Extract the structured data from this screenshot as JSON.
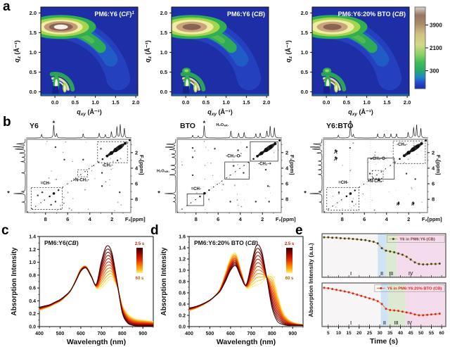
{
  "panels": {
    "a": "a",
    "b": "b",
    "c": "c",
    "d": "d",
    "e": "e"
  },
  "chart_data": [
    {
      "id": "a",
      "type": "heatmap",
      "technique": "2D GIWAXS patterns, intensity map of qz vs qxy",
      "plots": [
        {
          "title": [
            [
              "PM6:Y6 (",
              0
            ],
            [
              "CF",
              1
            ],
            [
              ")",
              0
            ],
            [
              "1",
              2
            ]
          ],
          "core": "white",
          "spot": false
        },
        {
          "title": [
            [
              "PM6:Y6 (",
              0
            ],
            [
              "CB",
              1
            ],
            [
              ")",
              0
            ]
          ],
          "core": "brown",
          "spot": true
        },
        {
          "title": [
            [
              "PM6:Y6:20% BTO (",
              0
            ],
            [
              "CB",
              1
            ],
            [
              ")",
              0
            ]
          ],
          "core": "brown",
          "spot": true
        }
      ],
      "xlabel": {
        "v": "q",
        "sub": "xy",
        "unit": " (Å⁻¹)"
      },
      "ylabel": {
        "v": "q",
        "sub": "z",
        "unit": " (Å⁻¹)"
      },
      "x_ticks": [
        "0.0",
        "0.5",
        "1.0",
        "1.5",
        "2.0"
      ],
      "y_ticks": [
        "2.0",
        "1.5",
        "1.0",
        "0.5",
        "0.0"
      ],
      "x_tick_vals": [
        0,
        0.5,
        1,
        1.5,
        2
      ],
      "y_tick_vals": [
        2,
        1.5,
        1,
        0.5,
        0
      ],
      "features": {
        "pipi_ring_q": 1.63,
        "lamellar_q": 0.3
      },
      "palette": {
        "background": "#1d2ea6",
        "ring": "#2fae52",
        "khaki": "#a6d44e",
        "pale": "#eeeea2",
        "tan": "#c49a74",
        "brown": "#8a6452",
        "white": "#f7f3ea"
      },
      "colorbar": {
        "ticks": [
          "3900",
          "2100",
          "300"
        ],
        "positions": [
          0.22,
          0.5,
          0.78
        ],
        "stops": [
          [
            0,
            "#d9d4d1"
          ],
          [
            0.1,
            "#97755f"
          ],
          [
            0.2,
            "#a98a68"
          ],
          [
            0.33,
            "#cfc182"
          ],
          [
            0.46,
            "#d3d886"
          ],
          [
            0.58,
            "#8ed06a"
          ],
          [
            0.68,
            "#3fbc56"
          ],
          [
            0.78,
            "#2aa86c"
          ],
          [
            0.86,
            "#1f86c8"
          ],
          [
            0.93,
            "#2547cc"
          ],
          [
            1,
            "#1c2fa6"
          ]
        ]
      }
    },
    {
      "id": "b",
      "type": "scatter",
      "technique": "2D NOESY NMR contour maps",
      "xlabel": "F₂[ppm]",
      "ylabel": "F₁[ppm]",
      "tick_vals": [
        8,
        6,
        4,
        2
      ],
      "tick_labels": [
        "8",
        "6",
        "4",
        "2"
      ],
      "panels": [
        {
          "title": "Y6",
          "box_style": "dashed",
          "seed": 7,
          "boxes": [
            [
              0.6,
              0.6,
              3.3,
              3.3
            ],
            [
              6.5,
              6.5,
              9.3,
              9.3
            ],
            [
              4.2,
              4.2,
              5.1,
              5.1
            ]
          ],
          "solid_boxes": [],
          "labels": [
            {
              "t": "-CH₂-",
              "x": 2.4,
              "y": 3.8
            },
            {
              "t": ">N-CH₂-",
              "x": 4.8,
              "y": 5.7
            },
            {
              "t": "=CH-",
              "x": 8.0,
              "y": 6.1
            }
          ],
          "cross": [
            [
              7.1,
              8.3
            ],
            [
              8.3,
              7.1
            ],
            [
              7.5,
              8.7
            ],
            [
              8.7,
              7.5
            ],
            [
              4.6,
              2.9
            ],
            [
              2.9,
              4.6
            ],
            [
              3.0,
              1.5
            ],
            [
              1.5,
              3.0
            ],
            [
              7.1,
              1.3
            ],
            [
              2.9,
              6.3
            ],
            [
              6.3,
              2.9
            ],
            [
              1.3,
              7.1
            ]
          ],
          "peaks": [
            [
              8.35,
              0.25
            ],
            [
              7.26,
              0.95
            ],
            [
              7.0,
              0.3
            ],
            [
              4.6,
              0.3
            ],
            [
              3.15,
              0.35
            ],
            [
              2.6,
              0.25
            ],
            [
              2.05,
              0.45
            ],
            [
              1.55,
              0.8
            ],
            [
              1.25,
              0.95
            ],
            [
              0.88,
              0.7
            ]
          ],
          "star_top": 7.26,
          "star_left": 7.2,
          "h2o": null,
          "cols": [],
          "arrows": []
        },
        {
          "title": "BTO",
          "box_style": "solid",
          "seed": 11,
          "boxes": [
            [
              0.6,
              0.6,
              3.1,
              3.1
            ],
            [
              3.2,
              3.2,
              5.4,
              5.4
            ],
            [
              7.3,
              7.3,
              8.8,
              8.8
            ]
          ],
          "solid_boxes": [],
          "labels": [
            {
              "t": "-CH₂-O-",
              "x": 4.6,
              "y": 2.6
            },
            {
              "t": "-CH₂-",
              "x": 1.9,
              "y": 3.6
            },
            {
              "t": "=CH-",
              "x": 8.0,
              "y": 6.8
            }
          ],
          "cross": [
            [
              3.7,
              4.6
            ],
            [
              4.6,
              3.7
            ],
            [
              4.2,
              1.7
            ],
            [
              1.7,
              4.2
            ],
            [
              3.4,
              1.3
            ],
            [
              1.3,
              3.4
            ],
            [
              8.3,
              4.9
            ],
            [
              8.3,
              2.6
            ],
            [
              8.3,
              1.4
            ],
            [
              4.9,
              8.3
            ],
            [
              2.6,
              8.3
            ],
            [
              1.4,
              8.3
            ],
            [
              6.3,
              1.5
            ],
            [
              1.5,
              6.3
            ]
          ],
          "peaks": [
            [
              8.3,
              0.2
            ],
            [
              7.8,
              0.15
            ],
            [
              7.26,
              0.9
            ],
            [
              4.85,
              0.5
            ],
            [
              4.15,
              0.35
            ],
            [
              3.65,
              0.4
            ],
            [
              2.6,
              0.3
            ],
            [
              2.2,
              0.35
            ],
            [
              1.6,
              0.5
            ],
            [
              1.3,
              0.85
            ],
            [
              0.92,
              0.75
            ]
          ],
          "star_top": 7.26,
          "star_left": 7.2,
          "h2o": {
            "x": 4.85,
            "y": 4.85,
            "label": "H₂Oₛₐₜ."
          },
          "cols": [],
          "arrows": []
        },
        {
          "title": "Y6:BTO",
          "box_style": "dashed",
          "seed": 13,
          "boxes": [
            [
              0.5,
              0.5,
              3.4,
              3.4
            ],
            [
              6.5,
              6.5,
              9.4,
              9.4
            ],
            [
              4.3,
              4.3,
              5.3,
              5.3
            ]
          ],
          "solid_boxes": [
            [
              3.3,
              2.7,
              5.7,
              5.4
            ]
          ],
          "labels": [
            {
              "t": "-CH₂-",
              "x": 2.6,
              "y": 1.1
            },
            {
              "t": "-CH₂-O-",
              "x": 4.7,
              "y": 2.9
            },
            {
              "t": ">N-CH₂-",
              "x": 5.0,
              "y": 5.8
            },
            {
              "t": "=CH-",
              "x": 7.9,
              "y": 6.0
            }
          ],
          "cross": [
            [
              8.6,
              1.7
            ],
            [
              8.6,
              2.6
            ],
            [
              7.3,
              1.4
            ],
            [
              5.4,
              2.8
            ],
            [
              2.9,
              8.4
            ],
            [
              1.6,
              8.4
            ],
            [
              4.7,
              5.5
            ],
            [
              5.5,
              4.7
            ],
            [
              7.1,
              8.3
            ],
            [
              8.3,
              7.1
            ],
            [
              2.2,
              4.7
            ],
            [
              1.4,
              5.4
            ]
          ],
          "peaks": [
            [
              8.35,
              0.2
            ],
            [
              7.26,
              1.0
            ],
            [
              7.0,
              0.25
            ],
            [
              4.8,
              0.3
            ],
            [
              4.2,
              0.3
            ],
            [
              3.6,
              0.3
            ],
            [
              3.1,
              0.3
            ],
            [
              2.05,
              0.4
            ],
            [
              1.55,
              0.75
            ],
            [
              1.28,
              0.95
            ],
            [
              0.9,
              0.7
            ]
          ],
          "star_top": 7.26,
          "star_left": 7.2,
          "h2o": null,
          "cols": [
            7.3,
            5.45
          ],
          "arrows": [
            [
              8.75,
              2.1,
              8.45,
              1.75
            ],
            [
              8.75,
              3.0,
              8.45,
              2.65
            ],
            [
              3.1,
              8.75,
              2.85,
              8.45
            ],
            [
              1.75,
              8.75,
              1.5,
              8.45
            ]
          ]
        }
      ]
    },
    {
      "id": "c",
      "type": "line",
      "title": [
        [
          "PM6:Y6(",
          0
        ],
        [
          "CB",
          1
        ],
        [
          ")",
          0
        ]
      ],
      "xlabel": "Wavelength (nm)",
      "ylabel": "Absorption Intensity",
      "xlim": [
        400,
        950
      ],
      "ylim": [
        0,
        1.4
      ],
      "x_ticks": [
        400,
        500,
        600,
        700,
        800,
        900
      ],
      "y_ticks": [
        "0.0",
        "0.2",
        "0.4",
        "0.6",
        "0.8",
        "1.0",
        "1.2",
        "1.4"
      ],
      "legend": {
        "top": "2.5 s",
        "bottom": "60 s"
      },
      "n_curves": 12,
      "time_gradient": [
        [
          0,
          "#3a0000"
        ],
        [
          0.2,
          "#8b0000"
        ],
        [
          0.5,
          "#e83000"
        ],
        [
          0.78,
          "#ff9c00"
        ],
        [
          1,
          "#ffef78"
        ]
      ],
      "x": [
        400,
        425,
        450,
        475,
        500,
        525,
        550,
        575,
        600,
        625,
        650,
        675,
        700,
        725,
        750,
        775,
        800,
        825,
        850,
        875,
        900,
        925,
        950
      ],
      "series": [
        {
          "name": "2.5 s",
          "values": [
            0.3,
            0.32,
            0.34,
            0.38,
            0.42,
            0.48,
            0.56,
            0.7,
            0.86,
            0.91,
            0.78,
            0.66,
            1.02,
            1.25,
            1.15,
            0.7,
            0.22,
            0.06,
            0.02,
            0.01,
            0.01,
            0.01,
            0.01
          ]
        },
        {
          "name": "60 s",
          "values": [
            0.25,
            0.28,
            0.31,
            0.35,
            0.39,
            0.46,
            0.55,
            0.72,
            0.9,
            0.94,
            0.8,
            0.6,
            0.6,
            0.68,
            0.74,
            0.62,
            0.34,
            0.2,
            0.14,
            0.11,
            0.1,
            0.09,
            0.08
          ]
        }
      ]
    },
    {
      "id": "d",
      "type": "line",
      "title": [
        [
          "PM6:Y6:20% BTO (",
          0
        ],
        [
          "CB",
          1
        ],
        [
          ")",
          0
        ]
      ],
      "xlabel": "Wavelength (nm)",
      "ylabel": "Absorption Intensity",
      "xlim": [
        400,
        950
      ],
      "ylim": [
        0,
        1.6
      ],
      "x_ticks": [
        400,
        500,
        600,
        700,
        800,
        900
      ],
      "y_ticks": [
        "0.0",
        "0.2",
        "0.4",
        "0.6",
        "0.8",
        "1.0",
        "1.2",
        "1.4",
        "1.6"
      ],
      "legend": {
        "top": "2.5 s",
        "bottom": "60 s"
      },
      "n_curves": 12,
      "time_gradient": [
        [
          0,
          "#3a0000"
        ],
        [
          0.2,
          "#8b0000"
        ],
        [
          0.5,
          "#e83000"
        ],
        [
          0.78,
          "#ff9c00"
        ],
        [
          1,
          "#ffef78"
        ]
      ],
      "x": [
        400,
        425,
        450,
        475,
        500,
        525,
        550,
        575,
        600,
        625,
        650,
        675,
        700,
        725,
        750,
        775,
        800,
        825,
        850,
        875,
        900,
        925,
        950
      ],
      "series": [
        {
          "name": "2.5 s",
          "values": [
            0.33,
            0.35,
            0.38,
            0.42,
            0.47,
            0.54,
            0.63,
            0.8,
            1.0,
            1.08,
            0.88,
            0.74,
            1.1,
            1.44,
            1.34,
            0.86,
            0.34,
            0.1,
            0.04,
            0.02,
            0.02,
            0.02,
            0.02
          ]
        },
        {
          "name": "60 s",
          "values": [
            0.28,
            0.31,
            0.35,
            0.4,
            0.46,
            0.55,
            0.68,
            0.95,
            1.22,
            1.3,
            1.0,
            0.7,
            0.7,
            0.74,
            0.78,
            0.88,
            0.92,
            0.6,
            0.28,
            0.14,
            0.08,
            0.05,
            0.04
          ]
        }
      ]
    },
    {
      "id": "e",
      "type": "line",
      "xlabel": "Time (s)",
      "ylabel": "Absorption Intensity (a.u.)",
      "x_ticks": [
        5,
        10,
        15,
        20,
        25,
        30,
        35,
        40,
        45,
        50,
        55,
        60
      ],
      "x": [
        3,
        5,
        7,
        9,
        11,
        13,
        15,
        17,
        19,
        21,
        23,
        25,
        27,
        29,
        31,
        33,
        35,
        37,
        39,
        41,
        43,
        45,
        47,
        49,
        51,
        53,
        55,
        57,
        59
      ],
      "region_colors": [
        "#f8f5f7",
        "#cfe3f4",
        "#dcead3",
        "#f4dcec"
      ],
      "series_styles": [
        {
          "marker": "#3f4436",
          "line": "#d4ab25",
          "text": "#7a3b2e"
        },
        {
          "marker": "#e0251c",
          "line": "#f08030",
          "text": "#e0251c"
        }
      ],
      "subplots": [
        {
          "name": "Y6 in PM6:Y6 (CB)",
          "legend_x": 33.5,
          "values": [
            0.93,
            0.93,
            0.92,
            0.92,
            0.91,
            0.9,
            0.9,
            0.89,
            0.88,
            0.87,
            0.86,
            0.84,
            0.82,
            0.78,
            0.66,
            0.6,
            0.58,
            0.56,
            0.53,
            0.5,
            0.45,
            0.38,
            0.31,
            0.27,
            0.26,
            0.26,
            0.27,
            0.27,
            0.28
          ],
          "region_bounds": [
            29,
            33,
            38.2
          ],
          "region_labels": [
            "I",
            "II",
            "III",
            "IV"
          ],
          "label_x": [
            16,
            31,
            35.5,
            45
          ]
        },
        {
          "name": "Y6 in PM6:Y6:20% BTO (CB)",
          "legend_x": 27.5,
          "values": [
            0.9,
            0.89,
            0.87,
            0.85,
            0.83,
            0.81,
            0.79,
            0.76,
            0.73,
            0.7,
            0.67,
            0.64,
            0.61,
            0.57,
            0.5,
            0.38,
            0.35,
            0.34,
            0.33,
            0.31,
            0.29,
            0.27,
            0.24,
            0.22,
            0.22,
            0.23,
            0.24,
            0.25,
            0.26
          ],
          "region_bounds": [
            30.5,
            34,
            42.5
          ],
          "region_labels": [
            "I",
            "II",
            "III",
            "IV"
          ],
          "label_x": [
            16,
            32.3,
            38,
            44.5
          ]
        }
      ]
    }
  ]
}
